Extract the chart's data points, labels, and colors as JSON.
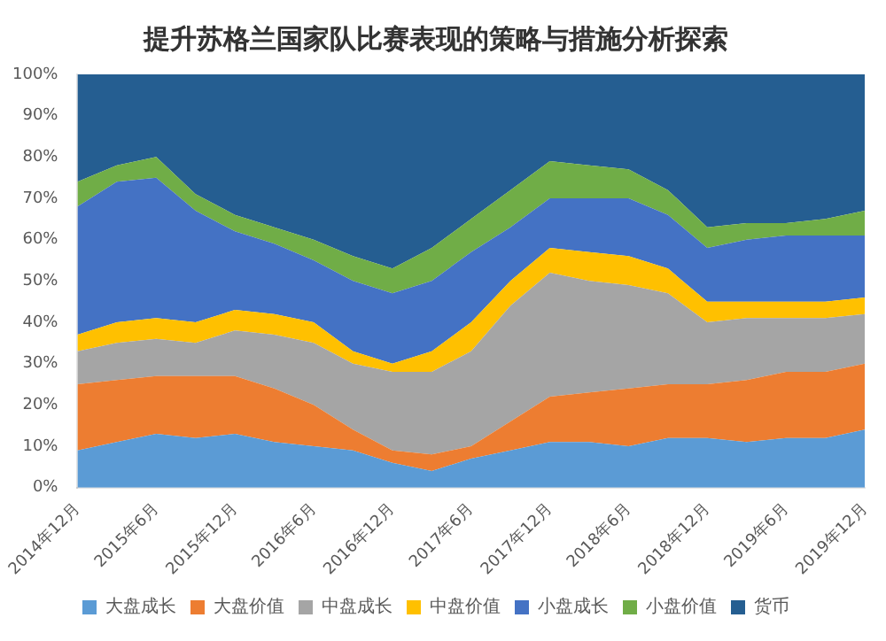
{
  "chart_data": {
    "type": "area",
    "title": "提升苏格兰国家队比赛表现的策略与措施分析探索",
    "stacked": true,
    "legend": "bottom",
    "marker": "none",
    "categories": [
      "2014年12月",
      null,
      "2015年6月",
      null,
      "2015年12月",
      null,
      "2016年6月",
      null,
      "2016年12月",
      null,
      "2017年6月",
      null,
      "2017年12月",
      null,
      "2018年6月",
      null,
      "2018年12月",
      null,
      "2019年6月",
      null,
      "2019年12月"
    ],
    "ylim": [
      0,
      100
    ],
    "yticks": [
      {
        "value": 0,
        "label": "0%"
      },
      {
        "value": 10,
        "label": "10%"
      },
      {
        "value": 20,
        "label": "20%"
      },
      {
        "value": 30,
        "label": "30%"
      },
      {
        "value": 40,
        "label": "40%"
      },
      {
        "value": 50,
        "label": "50%"
      },
      {
        "value": 60,
        "label": "60%"
      },
      {
        "value": 70,
        "label": "70%"
      },
      {
        "value": 80,
        "label": "80%"
      },
      {
        "value": 90,
        "label": "90%"
      },
      {
        "value": 100,
        "label": "100%"
      }
    ],
    "series": [
      {
        "name": "大盘成长",
        "color": "#5b9bd5",
        "values": [
          9,
          11,
          13,
          12,
          13,
          11,
          10,
          9,
          6,
          4,
          7,
          9,
          11,
          11,
          10,
          12,
          12,
          11,
          12,
          12,
          14
        ]
      },
      {
        "name": "大盘价值",
        "color": "#ed7d31",
        "values": [
          16,
          15,
          14,
          15,
          14,
          13,
          10,
          5,
          3,
          4,
          3,
          7,
          11,
          12,
          14,
          13,
          13,
          15,
          16,
          16,
          16
        ]
      },
      {
        "name": "中盘成长",
        "color": "#a5a5a5",
        "values": [
          8,
          9,
          9,
          8,
          11,
          13,
          15,
          16,
          19,
          20,
          23,
          28,
          30,
          27,
          25,
          22,
          15,
          15,
          13,
          13,
          12
        ]
      },
      {
        "name": "中盘价值",
        "color": "#ffc000",
        "values": [
          4,
          5,
          5,
          5,
          5,
          5,
          5,
          3,
          2,
          5,
          7,
          6,
          6,
          7,
          7,
          6,
          5,
          4,
          4,
          4,
          4
        ]
      },
      {
        "name": "小盘成长",
        "color": "#4472c4",
        "values": [
          31,
          34,
          34,
          27,
          19,
          17,
          15,
          17,
          17,
          17,
          17,
          13,
          12,
          13,
          14,
          13,
          13,
          15,
          16,
          16,
          15
        ]
      },
      {
        "name": "小盘价值",
        "color": "#70ad47",
        "values": [
          6,
          4,
          5,
          4,
          4,
          4,
          5,
          6,
          6,
          8,
          8,
          9,
          9,
          8,
          7,
          6,
          5,
          4,
          3,
          4,
          6
        ]
      },
      {
        "name": "货币",
        "color": "#255e91",
        "values": [
          26,
          22,
          20,
          29,
          34,
          37,
          40,
          44,
          47,
          42,
          35,
          28,
          21,
          22,
          23,
          28,
          37,
          36,
          36,
          35,
          33
        ]
      }
    ]
  }
}
